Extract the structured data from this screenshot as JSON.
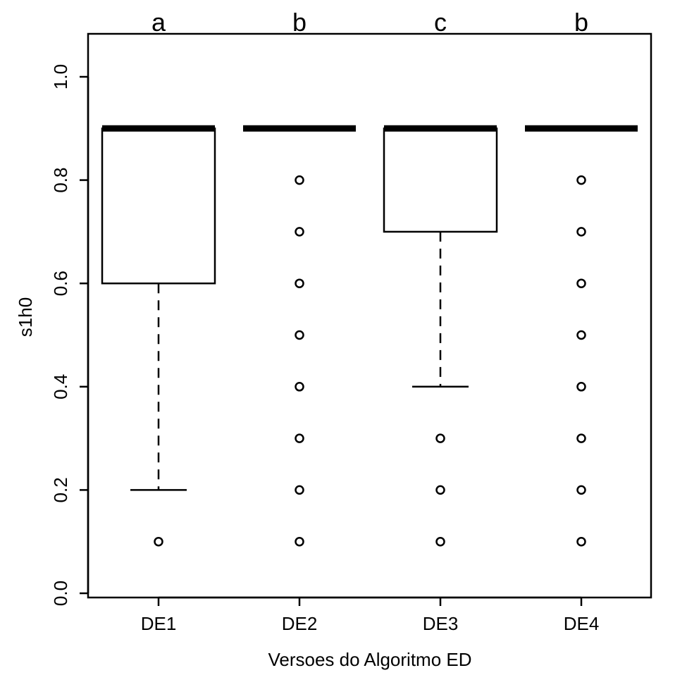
{
  "chart_data": {
    "type": "boxplot",
    "xlabel": "Versoes do Algoritmo ED",
    "ylabel": "s1h0",
    "ylim": [
      0,
      1.05
    ],
    "yticks": [
      0.0,
      0.2,
      0.4,
      0.6,
      0.8,
      1.0
    ],
    "ytick_labels": [
      "0.0",
      "0.2",
      "0.4",
      "0.6",
      "0.8",
      "1.0"
    ],
    "grid": false,
    "categories": [
      "DE1",
      "DE2",
      "DE3",
      "DE4"
    ],
    "group_letters": [
      "a",
      "b",
      "c",
      "b"
    ],
    "boxes": [
      {
        "whisker_low": 0.2,
        "q1": 0.6,
        "median": 0.9,
        "q3": 0.9,
        "whisker_high": 0.9,
        "outliers": [
          0.1
        ]
      },
      {
        "whisker_low": 0.9,
        "q1": 0.9,
        "median": 0.9,
        "q3": 0.9,
        "whisker_high": 0.9,
        "outliers": [
          0.8,
          0.7,
          0.6,
          0.5,
          0.4,
          0.3,
          0.2,
          0.1
        ]
      },
      {
        "whisker_low": 0.4,
        "q1": 0.7,
        "median": 0.9,
        "q3": 0.9,
        "whisker_high": 0.9,
        "outliers": [
          0.3,
          0.2,
          0.1
        ]
      },
      {
        "whisker_low": 0.9,
        "q1": 0.9,
        "median": 0.9,
        "q3": 0.9,
        "whisker_high": 0.9,
        "outliers": [
          0.8,
          0.7,
          0.6,
          0.5,
          0.4,
          0.3,
          0.2,
          0.1
        ]
      }
    ]
  }
}
